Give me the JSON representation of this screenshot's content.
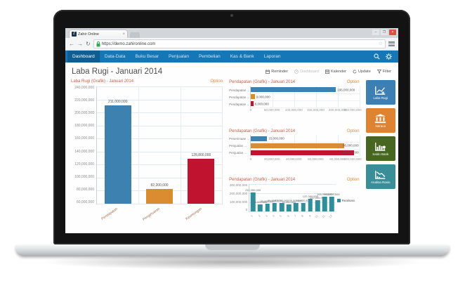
{
  "browser": {
    "tab_title": "Zahir Online",
    "tab_favicon": "Z",
    "url": "https://demo.zahironline.com"
  },
  "icons": {
    "back": "←",
    "forward": "→",
    "reload": "↻",
    "bookmark_star": "☆",
    "tab_close": "×",
    "minimize": "–",
    "maximize": "❐",
    "close_window": "×"
  },
  "nav": {
    "items": [
      {
        "label": "Dashboard",
        "active": true
      },
      {
        "label": "Data-Data",
        "active": false
      },
      {
        "label": "Buku Besar",
        "active": false
      },
      {
        "label": "Penjualan",
        "active": false
      },
      {
        "label": "Pembelian",
        "active": false
      },
      {
        "label": "Kas & Bank",
        "active": false
      },
      {
        "label": "Laporan",
        "active": false
      }
    ]
  },
  "header": {
    "title": "Laba Rugi - Januari 2014",
    "toolbar": [
      {
        "label": "Reminder",
        "icon": "reminder-icon",
        "disabled": false
      },
      {
        "label": "Dashboard",
        "icon": "dashboard-icon",
        "disabled": true
      },
      {
        "label": "Kalender",
        "icon": "calendar-icon",
        "disabled": false
      },
      {
        "label": "Update",
        "icon": "update-icon",
        "disabled": false
      },
      {
        "label": "Filter",
        "icon": "filter-icon",
        "disabled": false
      }
    ]
  },
  "tiles": [
    {
      "label": "Laba Rugi",
      "color": "#3d7fb3",
      "icon": "profit-chart-icon"
    },
    {
      "label": "Neraca",
      "color": "#dd8331",
      "icon": "bank-icon"
    },
    {
      "label": "Saldo Bank",
      "color": "#47661f",
      "icon": "bank-balance-icon"
    },
    {
      "label": "Analisa Rasio",
      "color": "#3a8e98",
      "icon": "ratio-analysis-icon"
    }
  ],
  "chart_data": [
    {
      "type": "bar",
      "title": "Laba Rugi (Grafik) - Januari 2014",
      "option_label": "Option",
      "categories": [
        "Pendapatan",
        "Pengeluaran",
        "Keuntungan"
      ],
      "values": [
        211000000,
        82200000,
        128800000
      ],
      "value_labels": [
        "211,000,000",
        "82,200,000",
        "128,800,000"
      ],
      "bar_colors": [
        "#3c81b0",
        "#dc8c30",
        "#c01330"
      ],
      "ylim": [
        60000000,
        240000000
      ],
      "ytick_labels": [
        "240,000,000",
        "220,000,000",
        "200,000,000",
        "180,000,000",
        "160,000,000",
        "140,000,000",
        "120,000,000",
        "100,000,000",
        "80,000,000",
        "60,000,000"
      ],
      "xlabel": "",
      "ylabel": "",
      "grid": true
    },
    {
      "type": "hbar",
      "title": "Pendapatan (Grafik) - Januari 2014",
      "option_label": "Option",
      "categories": [
        "Pendapatan ...",
        "Pendapatan ...",
        "Pendapatan ..."
      ],
      "values": [
        196000000,
        9000000,
        6000000
      ],
      "value_labels": [
        "196,000,000",
        "9,000,000",
        "6,000,000"
      ],
      "bar_colors": [
        "#3c81b0",
        "#dc8c30",
        "#c01330"
      ],
      "xlim": [
        0,
        250000000
      ],
      "xtick_labels": [
        "0",
        "50,000,000",
        "100,000,000",
        "150,000,000",
        "200,000,000",
        "250,000,000"
      ],
      "grid": true
    },
    {
      "type": "hbar",
      "title": "Pendapatan (Grafik) - Januari 2014",
      "option_label": "Option",
      "categories": [
        "Penerimaan ...",
        "Penjualan ...",
        "Penjualan ..."
      ],
      "values": [
        15000000,
        86000000,
        95000000
      ],
      "value_labels": [
        "15,000,000",
        "86,000,000",
        "95,000,000"
      ],
      "bar_colors": [
        "#3c81b0",
        "#dc8c30",
        "#c01330"
      ],
      "xlim": [
        0,
        100000000
      ],
      "xtick_labels": [
        "0",
        "20,000,000",
        "40,000,000",
        "60,000,000",
        "80,000,000",
        "100,000,000"
      ],
      "grid": true
    },
    {
      "type": "bar",
      "title": "Pendapatan (Grafik) - Januari 2014",
      "option_label": "Option",
      "legend": "Realisasi",
      "legend_position": "right",
      "categories": [
        "1",
        "2",
        "3",
        "4",
        "5",
        "6",
        "7",
        "8",
        "9",
        "10",
        "11",
        "12"
      ],
      "values": [
        211000000,
        75000000,
        85000000,
        95000000,
        95000000,
        75000000,
        95000000,
        90000000,
        137000000,
        122000000,
        165000000,
        160000000
      ],
      "value_labels": [
        "211,000,000",
        "75,000,000",
        "85,000,000",
        "95,000,000",
        "95,000,000",
        "75,000,000",
        "95,000,000",
        "90,000,000",
        "137,000,000",
        "122,000,000",
        "165,000,000",
        "160,000,000"
      ],
      "bar_colors": [
        "#2f8e99"
      ],
      "ylim": [
        0,
        300000000
      ],
      "ytick_labels": [
        "300,000,000",
        "200,000,000",
        "100,000,000",
        "0"
      ],
      "grid": true
    }
  ]
}
